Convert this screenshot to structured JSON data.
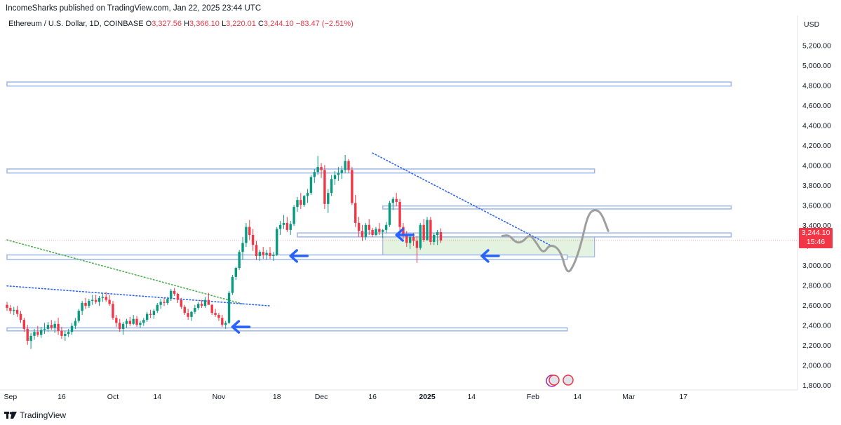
{
  "header": {
    "published_text": "IncomeSharks published on TradingView.com, Jan 22, 2025 23:44 UTC"
  },
  "legend": {
    "symbol": "Ethereum / U.S. Dollar, 1D, COINBASE",
    "open_label": "O",
    "open": "3,327.56",
    "high_label": "H",
    "high": "3,366.10",
    "low_label": "L",
    "low": "3,220.01",
    "close_label": "C",
    "close": "3,244.10",
    "change": "−83.47 (−2.51%)"
  },
  "price_axis": {
    "currency": "USD",
    "ticks": [
      "5,200.00",
      "5,000.00",
      "4,800.00",
      "4,600.00",
      "4,400.00",
      "4,200.00",
      "4,000.00",
      "3,800.00",
      "3,600.00",
      "3,400.00",
      "3,200.00",
      "3,000.00",
      "2,800.00",
      "2,600.00",
      "2,400.00",
      "2,200.00",
      "2,000.00",
      "1,800.00"
    ],
    "tick_values": [
      5200,
      5000,
      4800,
      4600,
      4400,
      4200,
      4000,
      3800,
      3600,
      3400,
      3200,
      3000,
      2800,
      2600,
      2400,
      2200,
      2000,
      1800
    ],
    "last_price": "3,244.10",
    "countdown": "15:46"
  },
  "time_axis": {
    "labels": [
      "Sep",
      "16",
      "Oct",
      "14",
      "Nov",
      "18",
      "Dec",
      "16",
      "2025",
      "14",
      "Feb",
      "14",
      "Mar",
      "17"
    ],
    "bold_label": "2025"
  },
  "footer": {
    "brand": "TradingView"
  },
  "colors": {
    "up": "#089981",
    "down": "#f23645",
    "zone_line": "#9fb6e8",
    "arrow": "#2962ff",
    "projection": "#9e9e9e",
    "box_fill": "#d9efd4",
    "trend_blue": "#2962ff",
    "trend_green": "#4caf50"
  },
  "chart_data": {
    "type": "candlestick",
    "title": "Ethereum / U.S. Dollar, 1D, COINBASE",
    "ylabel": "USD",
    "ylim": [
      1700,
      5330
    ],
    "x_start": "2024-08-31",
    "candles": [
      [
        2600,
        2630,
        2540,
        2570
      ],
      [
        2570,
        2600,
        2510,
        2540
      ],
      [
        2540,
        2580,
        2500,
        2550
      ],
      [
        2550,
        2590,
        2480,
        2510
      ],
      [
        2510,
        2540,
        2420,
        2450
      ],
      [
        2450,
        2470,
        2330,
        2360
      ],
      [
        2360,
        2400,
        2200,
        2240
      ],
      [
        2240,
        2320,
        2160,
        2290
      ],
      [
        2290,
        2360,
        2250,
        2330
      ],
      [
        2330,
        2390,
        2280,
        2300
      ],
      [
        2300,
        2380,
        2270,
        2350
      ],
      [
        2350,
        2420,
        2310,
        2360
      ],
      [
        2360,
        2430,
        2330,
        2400
      ],
      [
        2400,
        2450,
        2350,
        2370
      ],
      [
        2370,
        2440,
        2320,
        2410
      ],
      [
        2410,
        2470,
        2300,
        2340
      ],
      [
        2340,
        2380,
        2260,
        2290
      ],
      [
        2290,
        2340,
        2240,
        2310
      ],
      [
        2310,
        2360,
        2280,
        2330
      ],
      [
        2330,
        2420,
        2300,
        2390
      ],
      [
        2390,
        2470,
        2360,
        2440
      ],
      [
        2440,
        2560,
        2420,
        2540
      ],
      [
        2540,
        2640,
        2500,
        2620
      ],
      [
        2620,
        2670,
        2560,
        2590
      ],
      [
        2590,
        2660,
        2570,
        2640
      ],
      [
        2640,
        2700,
        2600,
        2650
      ],
      [
        2650,
        2700,
        2610,
        2630
      ],
      [
        2630,
        2690,
        2590,
        2670
      ],
      [
        2670,
        2720,
        2630,
        2680
      ],
      [
        2680,
        2730,
        2630,
        2650
      ],
      [
        2650,
        2700,
        2590,
        2610
      ],
      [
        2610,
        2640,
        2450,
        2470
      ],
      [
        2470,
        2500,
        2380,
        2420
      ],
      [
        2420,
        2460,
        2330,
        2360
      ],
      [
        2360,
        2430,
        2300,
        2410
      ],
      [
        2410,
        2460,
        2370,
        2440
      ],
      [
        2440,
        2480,
        2390,
        2410
      ],
      [
        2410,
        2500,
        2400,
        2460
      ],
      [
        2460,
        2490,
        2380,
        2400
      ],
      [
        2400,
        2440,
        2370,
        2420
      ],
      [
        2420,
        2470,
        2390,
        2450
      ],
      [
        2450,
        2530,
        2430,
        2510
      ],
      [
        2510,
        2550,
        2470,
        2500
      ],
      [
        2500,
        2560,
        2460,
        2540
      ],
      [
        2540,
        2620,
        2520,
        2600
      ],
      [
        2600,
        2660,
        2560,
        2630
      ],
      [
        2630,
        2670,
        2590,
        2620
      ],
      [
        2620,
        2680,
        2600,
        2660
      ],
      [
        2660,
        2760,
        2640,
        2740
      ],
      [
        2740,
        2770,
        2690,
        2710
      ],
      [
        2710,
        2720,
        2620,
        2650
      ],
      [
        2650,
        2670,
        2560,
        2580
      ],
      [
        2580,
        2600,
        2500,
        2520
      ],
      [
        2520,
        2560,
        2450,
        2480
      ],
      [
        2480,
        2540,
        2440,
        2530
      ],
      [
        2530,
        2600,
        2510,
        2570
      ],
      [
        2570,
        2630,
        2550,
        2610
      ],
      [
        2610,
        2650,
        2570,
        2590
      ],
      [
        2590,
        2680,
        2570,
        2650
      ],
      [
        2650,
        2720,
        2620,
        2600
      ],
      [
        2600,
        2610,
        2500,
        2520
      ],
      [
        2520,
        2560,
        2480,
        2500
      ],
      [
        2500,
        2520,
        2440,
        2470
      ],
      [
        2470,
        2500,
        2380,
        2400
      ],
      [
        2400,
        2440,
        2360,
        2420
      ],
      [
        2420,
        2740,
        2410,
        2720
      ],
      [
        2720,
        2900,
        2700,
        2880
      ],
      [
        2880,
        2980,
        2850,
        2970
      ],
      [
        2970,
        3150,
        2950,
        3130
      ],
      [
        3130,
        3280,
        3050,
        3220
      ],
      [
        3220,
        3420,
        3180,
        3380
      ],
      [
        3380,
        3450,
        3250,
        3300
      ],
      [
        3300,
        3360,
        3140,
        3200
      ],
      [
        3200,
        3240,
        3050,
        3090
      ],
      [
        3090,
        3150,
        3040,
        3130
      ],
      [
        3130,
        3180,
        3060,
        3100
      ],
      [
        3100,
        3150,
        3050,
        3120
      ],
      [
        3120,
        3180,
        3060,
        3090
      ],
      [
        3090,
        3130,
        3040,
        3100
      ],
      [
        3100,
        3380,
        3090,
        3360
      ],
      [
        3360,
        3440,
        3300,
        3400
      ],
      [
        3400,
        3500,
        3360,
        3420
      ],
      [
        3420,
        3480,
        3330,
        3350
      ],
      [
        3350,
        3440,
        3300,
        3410
      ],
      [
        3410,
        3600,
        3390,
        3580
      ],
      [
        3580,
        3680,
        3530,
        3650
      ],
      [
        3650,
        3720,
        3560,
        3600
      ],
      [
        3600,
        3700,
        3580,
        3690
      ],
      [
        3690,
        3760,
        3620,
        3720
      ],
      [
        3720,
        3900,
        3700,
        3880
      ],
      [
        3880,
        3960,
        3820,
        3930
      ],
      [
        3930,
        4090,
        3900,
        3980
      ],
      [
        3980,
        4020,
        3870,
        3950
      ],
      [
        3950,
        4000,
        3560,
        3610
      ],
      [
        3610,
        3760,
        3520,
        3720
      ],
      [
        3720,
        3900,
        3690,
        3860
      ],
      [
        3860,
        3940,
        3800,
        3900
      ],
      [
        3900,
        3980,
        3840,
        3920
      ],
      [
        3920,
        3990,
        3860,
        3950
      ],
      [
        3950,
        4100,
        3920,
        4040
      ],
      [
        4040,
        4060,
        3920,
        3950
      ],
      [
        3950,
        3980,
        3600,
        3620
      ],
      [
        3620,
        3700,
        3380,
        3420
      ],
      [
        3420,
        3480,
        3280,
        3340
      ],
      [
        3340,
        3400,
        3240,
        3280
      ],
      [
        3280,
        3420,
        3250,
        3400
      ],
      [
        3400,
        3460,
        3300,
        3350
      ],
      [
        3350,
        3370,
        3280,
        3300
      ],
      [
        3300,
        3380,
        3290,
        3360
      ],
      [
        3360,
        3420,
        3300,
        3330
      ],
      [
        3330,
        3360,
        3270,
        3350
      ],
      [
        3350,
        3430,
        3320,
        3400
      ],
      [
        3400,
        3640,
        3380,
        3620
      ],
      [
        3620,
        3680,
        3550,
        3660
      ],
      [
        3660,
        3720,
        3590,
        3630
      ],
      [
        3630,
        3660,
        3330,
        3380
      ],
      [
        3380,
        3420,
        3260,
        3290
      ],
      [
        3290,
        3340,
        3180,
        3220
      ],
      [
        3220,
        3300,
        3160,
        3280
      ],
      [
        3280,
        3320,
        3190,
        3240
      ],
      [
        3240,
        3290,
        3020,
        3170
      ],
      [
        3170,
        3420,
        3150,
        3400
      ],
      [
        3400,
        3460,
        3230,
        3250
      ],
      [
        3250,
        3480,
        3240,
        3450
      ],
      [
        3450,
        3480,
        3200,
        3230
      ],
      [
        3230,
        3320,
        3200,
        3300
      ],
      [
        3300,
        3350,
        3200,
        3327.56
      ],
      [
        3327.56,
        3366.1,
        3220.01,
        3244.1
      ]
    ],
    "horizontal_zones": [
      {
        "y1": 4790,
        "y2": 4830,
        "x_start": "2024-08-31",
        "x_end": "2025-03-31"
      },
      {
        "y1": 3920,
        "y2": 3960,
        "x_start": "2024-08-31",
        "x_end": "2025-02-19"
      },
      {
        "y1": 3560,
        "y2": 3590,
        "x_start": "2024-12-19",
        "x_end": "2025-03-31"
      },
      {
        "y1": 3280,
        "y2": 3320,
        "x_start": "2024-11-24",
        "x_end": "2025-03-31"
      },
      {
        "y1": 3055,
        "y2": 3100,
        "x_start": "2024-08-31",
        "x_end": "2025-02-11"
      },
      {
        "y1": 2340,
        "y2": 2370,
        "x_start": "2024-08-31",
        "x_end": "2025-02-11"
      }
    ],
    "support_box": {
      "x_start": "2024-12-19",
      "x_end": "2025-02-19",
      "y1": 3080,
      "y2": 3310
    },
    "trendlines": [
      {
        "style": "dotted",
        "color": "green",
        "points": [
          [
            "2024-08-31",
            3250
          ],
          [
            "2024-11-08",
            2610
          ]
        ]
      },
      {
        "style": "dotted",
        "color": "blue",
        "points": [
          [
            "2024-08-31",
            2790
          ],
          [
            "2024-11-16",
            2590
          ]
        ]
      },
      {
        "style": "dotted",
        "color": "blue",
        "points": [
          [
            "2024-12-16",
            4120
          ],
          [
            "2025-02-07",
            3180
          ]
        ]
      }
    ],
    "arrows": [
      {
        "date": "2024-11-05",
        "price": 2380
      },
      {
        "date": "2024-11-22",
        "price": 3090
      },
      {
        "date": "2024-12-23",
        "price": 3300
      },
      {
        "date": "2025-01-17",
        "price": 3090
      }
    ],
    "projection": [
      [
        "2025-01-23",
        3290
      ],
      [
        "2025-01-25",
        3300
      ],
      [
        "2025-01-27",
        3220
      ],
      [
        "2025-01-29",
        3230
      ],
      [
        "2025-01-31",
        3310
      ],
      [
        "2025-02-02",
        3220
      ],
      [
        "2025-02-04",
        3110
      ],
      [
        "2025-02-06",
        3210
      ],
      [
        "2025-02-09",
        3150
      ],
      [
        "2025-02-11",
        2900
      ],
      [
        "2025-02-13",
        3000
      ],
      [
        "2025-02-15",
        3200
      ],
      [
        "2025-02-17",
        3500
      ],
      [
        "2025-02-19",
        3560
      ],
      [
        "2025-02-21",
        3520
      ],
      [
        "2025-02-23",
        3340
      ]
    ]
  }
}
